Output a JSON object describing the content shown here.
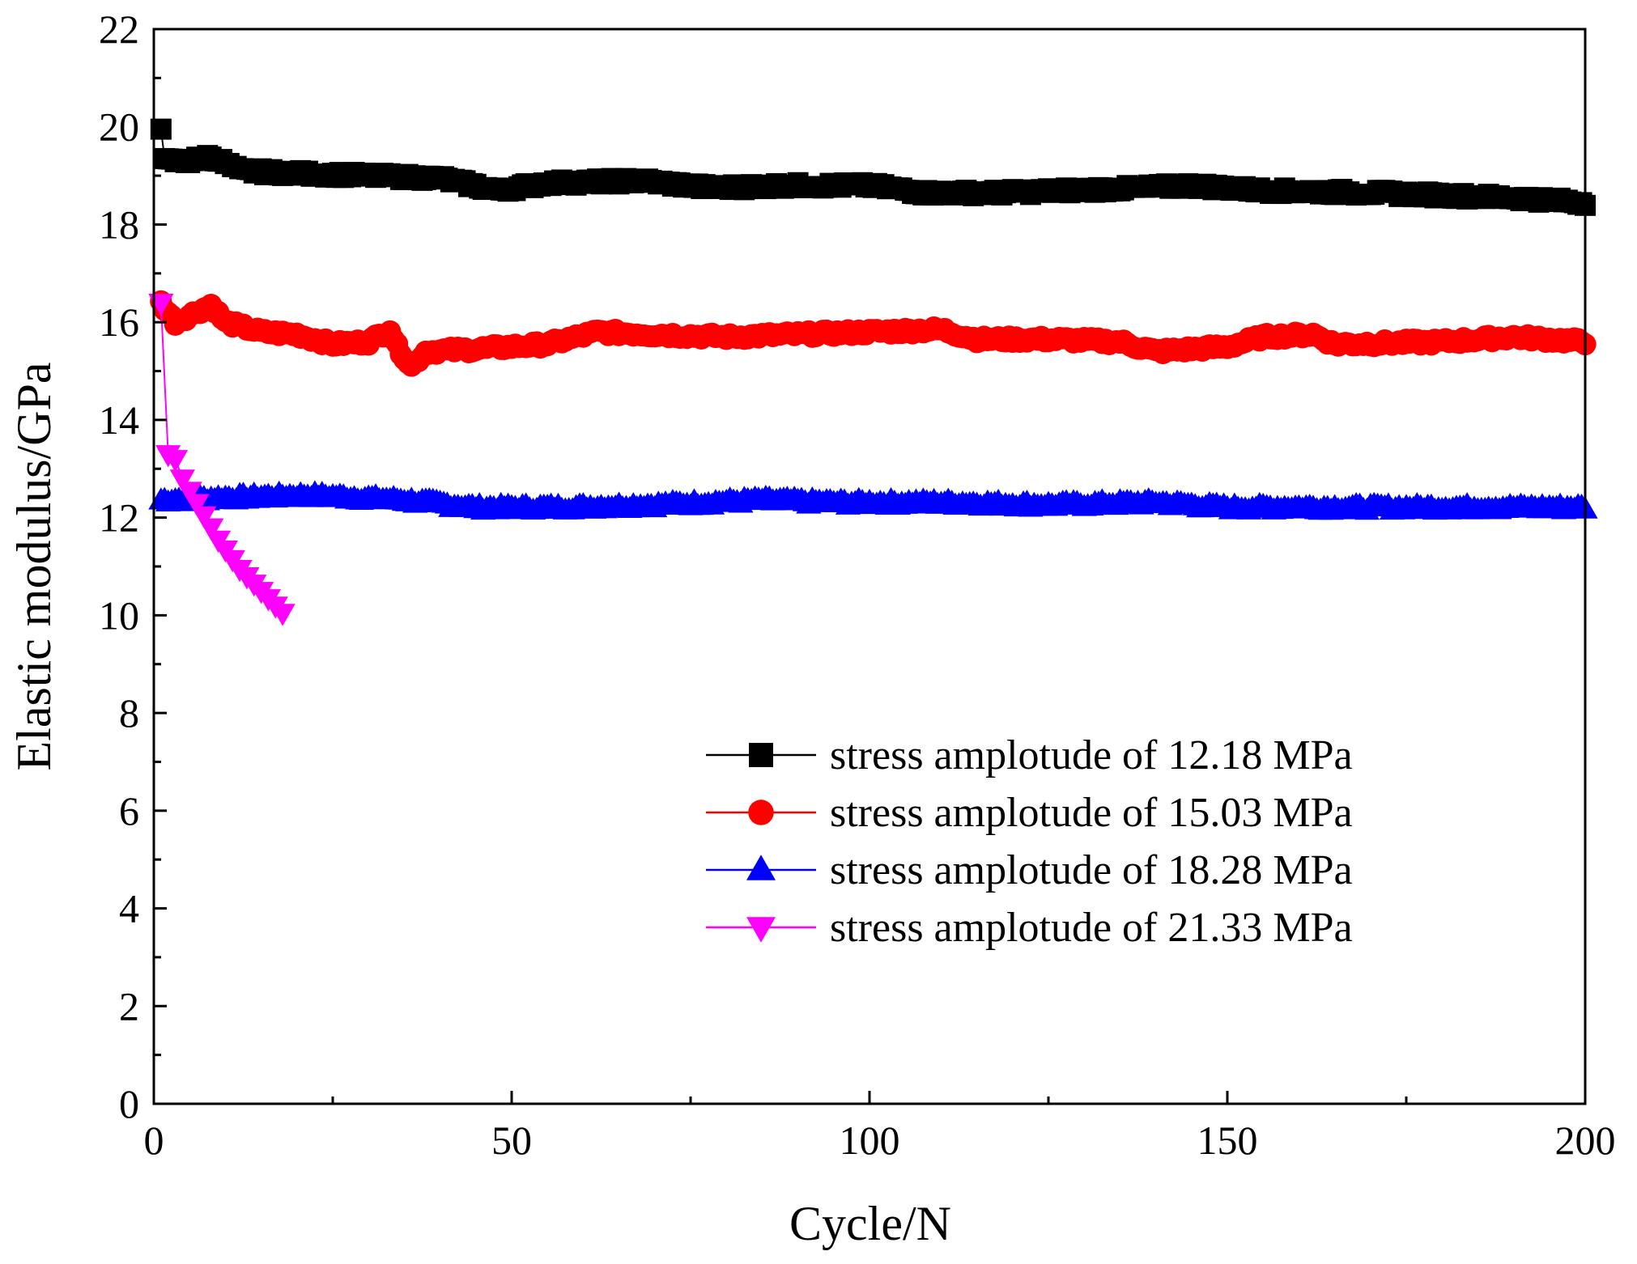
{
  "chart_data": {
    "type": "scatter",
    "title": "",
    "xlabel": "Cycle/N",
    "ylabel": "Elastic modulus/GPa",
    "xlim": [
      0,
      200
    ],
    "ylim": [
      0,
      22
    ],
    "xticks": [
      0,
      50,
      100,
      150,
      200
    ],
    "yticks": [
      0,
      2,
      4,
      6,
      8,
      10,
      12,
      14,
      16,
      18,
      20,
      22
    ],
    "x_tick_labels": [
      "0",
      "50",
      "100",
      "150",
      "200"
    ],
    "y_tick_labels": [
      "0",
      "2",
      "4",
      "6",
      "8",
      "10",
      "12",
      "14",
      "16",
      "18",
      "20",
      "22"
    ],
    "grid": false,
    "legend_position": "right-center",
    "series": [
      {
        "name": "stress amplotude of 12.18 MPa",
        "color": "#000000",
        "marker": "square",
        "connected": true,
        "keypoints": [
          [
            1,
            20.0
          ],
          [
            1.5,
            19.3
          ],
          [
            5,
            19.3
          ],
          [
            8,
            19.4
          ],
          [
            12,
            19.1
          ],
          [
            20,
            19.05
          ],
          [
            30,
            19.0
          ],
          [
            40,
            18.95
          ],
          [
            48,
            18.7
          ],
          [
            55,
            18.85
          ],
          [
            68,
            18.9
          ],
          [
            78,
            18.75
          ],
          [
            88,
            18.8
          ],
          [
            100,
            18.8
          ],
          [
            108,
            18.65
          ],
          [
            118,
            18.65
          ],
          [
            128,
            18.7
          ],
          [
            138,
            18.75
          ],
          [
            145,
            18.8
          ],
          [
            155,
            18.7
          ],
          [
            170,
            18.65
          ],
          [
            180,
            18.6
          ],
          [
            190,
            18.55
          ],
          [
            200,
            18.45
          ]
        ]
      },
      {
        "name": "stress amplotude of 15.03 MPa",
        "color": "#ff0000",
        "marker": "circle",
        "connected": true,
        "keypoints": [
          [
            1,
            16.4
          ],
          [
            3,
            16.0
          ],
          [
            8,
            16.35
          ],
          [
            10,
            16.0
          ],
          [
            15,
            15.8
          ],
          [
            20,
            15.75
          ],
          [
            25,
            15.55
          ],
          [
            30,
            15.6
          ],
          [
            33,
            15.85
          ],
          [
            34,
            15.5
          ],
          [
            36,
            15.1
          ],
          [
            38,
            15.4
          ],
          [
            45,
            15.45
          ],
          [
            55,
            15.55
          ],
          [
            62,
            15.8
          ],
          [
            70,
            15.75
          ],
          [
            80,
            15.7
          ],
          [
            90,
            15.75
          ],
          [
            100,
            15.8
          ],
          [
            110,
            15.85
          ],
          [
            115,
            15.65
          ],
          [
            125,
            15.65
          ],
          [
            135,
            15.6
          ],
          [
            140,
            15.4
          ],
          [
            150,
            15.5
          ],
          [
            155,
            15.7
          ],
          [
            162,
            15.75
          ],
          [
            165,
            15.55
          ],
          [
            180,
            15.6
          ],
          [
            190,
            15.7
          ],
          [
            200,
            15.6
          ]
        ]
      },
      {
        "name": "stress amplotude of 18.28 MPa",
        "color": "#0000ff",
        "marker": "triangle-up",
        "connected": true,
        "keypoints": [
          [
            1,
            12.35
          ],
          [
            10,
            12.4
          ],
          [
            22,
            12.45
          ],
          [
            35,
            12.35
          ],
          [
            45,
            12.2
          ],
          [
            57,
            12.2
          ],
          [
            70,
            12.25
          ],
          [
            85,
            12.35
          ],
          [
            95,
            12.3
          ],
          [
            110,
            12.3
          ],
          [
            125,
            12.25
          ],
          [
            140,
            12.3
          ],
          [
            150,
            12.2
          ],
          [
            165,
            12.2
          ],
          [
            180,
            12.2
          ],
          [
            200,
            12.2
          ]
        ]
      },
      {
        "name": "stress amplotude of 21.33 MPa",
        "color": "#ff00ff",
        "marker": "triangle-down",
        "connected": true,
        "points": [
          [
            1,
            16.4
          ],
          [
            2,
            13.3
          ],
          [
            3,
            13.2
          ],
          [
            4,
            12.8
          ],
          [
            5,
            12.55
          ],
          [
            6,
            12.3
          ],
          [
            7,
            12.05
          ],
          [
            8,
            11.8
          ],
          [
            9,
            11.55
          ],
          [
            10,
            11.35
          ],
          [
            11,
            11.15
          ],
          [
            12,
            10.95
          ],
          [
            13,
            10.8
          ],
          [
            14,
            10.65
          ],
          [
            15,
            10.5
          ],
          [
            16,
            10.35
          ],
          [
            17,
            10.2
          ],
          [
            18,
            10.05
          ]
        ]
      }
    ]
  }
}
